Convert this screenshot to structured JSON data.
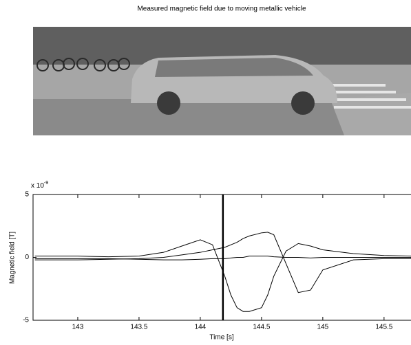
{
  "chart_data": {
    "type": "line",
    "title": "Measured magnetic field due to moving metallic vehicle",
    "x_label": "Time [s]",
    "y_label": "Magnetic field [T]",
    "y_multiplier": {
      "base": "x 10",
      "exponent": "-9"
    },
    "x": [
      142.65,
      143,
      143.25,
      143.5,
      143.7,
      143.85,
      144,
      144.1,
      144.2,
      144.25,
      144.3,
      144.35,
      144.4,
      144.5,
      144.55,
      144.6,
      144.7,
      144.8,
      144.9,
      145,
      145.25,
      145.5,
      145.72
    ],
    "series": [
      {
        "color": "#000000",
        "values": [
          0.1,
          0.1,
          0.05,
          0.1,
          0.4,
          0.9,
          1.4,
          1.0,
          -1.5,
          -3.0,
          -4.0,
          -4.3,
          -4.3,
          -4.0,
          -3.0,
          -1.5,
          0.5,
          1.1,
          0.9,
          0.6,
          0.3,
          0.15,
          0.1
        ]
      },
      {
        "color": "#000000",
        "values": [
          -0.2,
          -0.2,
          -0.15,
          -0.1,
          0,
          0.2,
          0.4,
          0.6,
          0.8,
          1.0,
          1.2,
          1.5,
          1.7,
          1.95,
          2.0,
          1.8,
          -0.5,
          -2.8,
          -2.6,
          -1.0,
          -0.2,
          -0.1,
          -0.1
        ]
      },
      {
        "color": "#000000",
        "values": [
          -0.1,
          -0.1,
          -0.1,
          -0.15,
          -0.2,
          -0.2,
          -0.15,
          -0.1,
          -0.1,
          -0.05,
          0,
          0,
          0.1,
          0.1,
          0.1,
          0.05,
          0,
          0,
          -0.05,
          0,
          0,
          0,
          0
        ]
      }
    ],
    "cursor_x": 144.185,
    "xlim": [
      142.635,
      145.72
    ],
    "ylim": [
      -5,
      5
    ],
    "xticks": [
      143,
      143.5,
      144,
      144.5,
      145,
      145.5
    ],
    "yticks": [
      -5,
      0,
      5
    ]
  }
}
